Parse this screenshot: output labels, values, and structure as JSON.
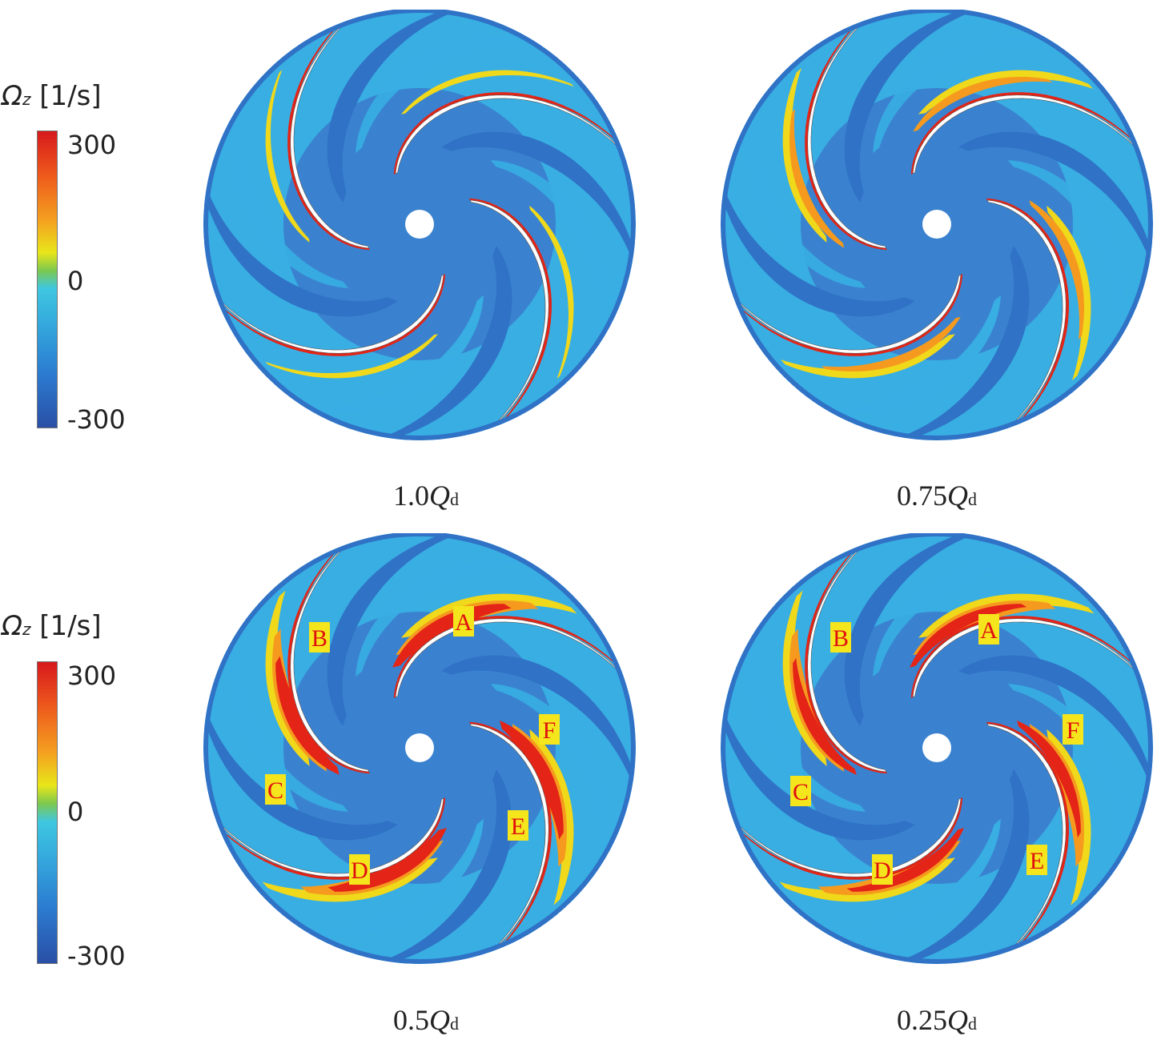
{
  "legends": [
    {
      "symbol": "Ω",
      "subscript": "z",
      "unit": "[1/s]",
      "ticks": [
        "300",
        "0",
        "-300"
      ]
    },
    {
      "symbol": "Ω",
      "subscript": "z",
      "unit": "[1/s]",
      "ticks": [
        "300",
        "0",
        "-300"
      ]
    }
  ],
  "panels": [
    {
      "caption_value": "1.0",
      "caption_q": "Q",
      "caption_sub": "d",
      "labels": []
    },
    {
      "caption_value": "0.75",
      "caption_q": "Q",
      "caption_sub": "d",
      "labels": []
    },
    {
      "caption_value": "0.5",
      "caption_q": "Q",
      "caption_sub": "d",
      "labels": [
        "A",
        "B",
        "C",
        "D",
        "E",
        "F"
      ]
    },
    {
      "caption_value": "0.25",
      "caption_q": "Q",
      "caption_sub": "d",
      "labels": [
        "A",
        "B",
        "C",
        "D",
        "E",
        "F"
      ]
    }
  ],
  "colors": {
    "background_field": "#39aee3",
    "dark_band": "#2f72c6",
    "hub_region": "#3a82cf",
    "high_vorticity": "#e32416",
    "mid_vorticity": "#f0d81a",
    "orange": "#f59a1e",
    "blade": "#ffffff",
    "label_box": "#f4e51c",
    "label_text": "#e01010"
  }
}
